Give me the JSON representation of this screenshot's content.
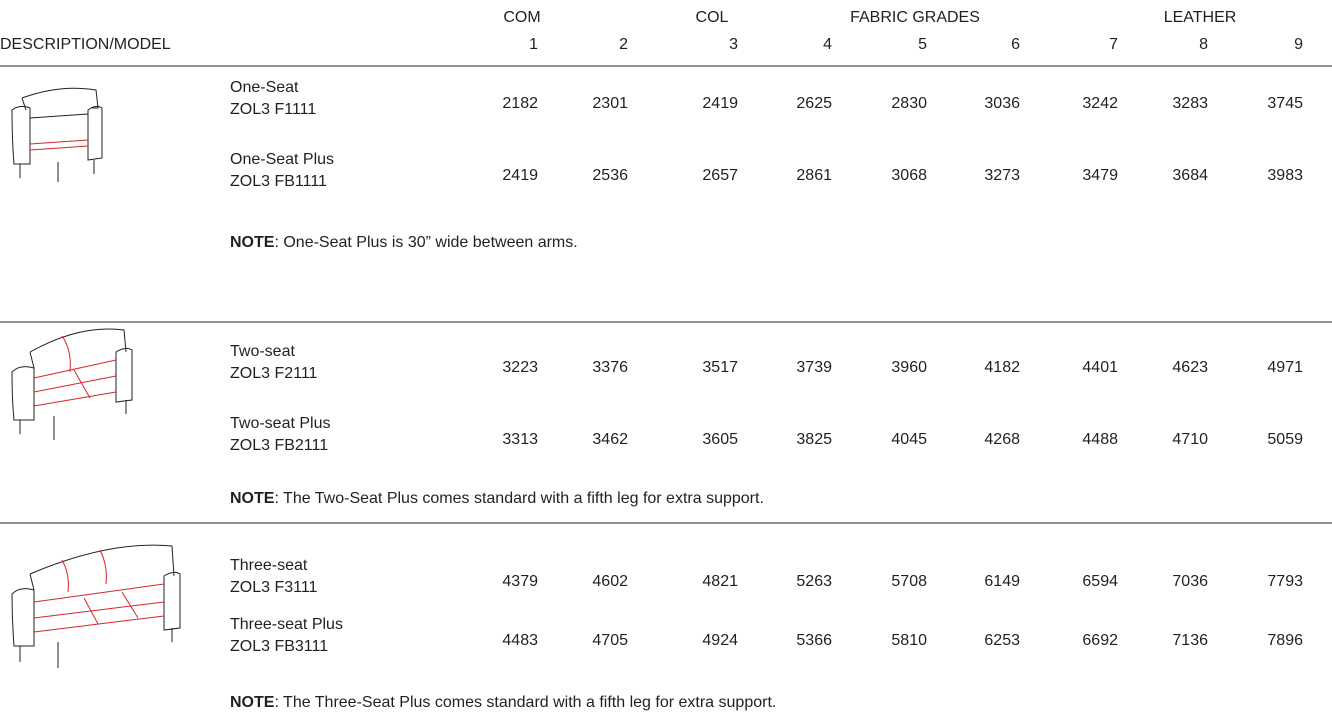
{
  "header": {
    "description": "DESCRIPTION/MODEL",
    "groups": [
      "COM",
      "COL",
      "FABRIC GRADES",
      "LEATHER"
    ],
    "grades": [
      "1",
      "2",
      "3",
      "4",
      "5",
      "6",
      "7",
      "8",
      "9"
    ]
  },
  "sections": [
    {
      "rows": [
        {
          "name": "One-Seat",
          "model": "ZOL3 F1111",
          "prices": [
            "2182",
            "2301",
            "2419",
            "2625",
            "2830",
            "3036",
            "3242",
            "3283",
            "3745"
          ]
        },
        {
          "name": "One-Seat Plus",
          "model": "ZOL3 FB1111",
          "prices": [
            "2419",
            "2536",
            "2657",
            "2861",
            "3068",
            "3273",
            "3479",
            "3684",
            "3983"
          ]
        }
      ],
      "note": {
        "label": "NOTE",
        "text": ": One-Seat Plus is 30” wide between arms."
      }
    },
    {
      "rows": [
        {
          "name": "Two-seat",
          "model": "ZOL3 F2111",
          "prices": [
            "3223",
            "3376",
            "3517",
            "3739",
            "3960",
            "4182",
            "4401",
            "4623",
            "4971"
          ]
        },
        {
          "name": "Two-seat Plus",
          "model": "ZOL3 FB2111",
          "prices": [
            "3313",
            "3462",
            "3605",
            "3825",
            "4045",
            "4268",
            "4488",
            "4710",
            "5059"
          ]
        }
      ],
      "note": {
        "label": "NOTE",
        "text": ": The Two-Seat Plus comes standard with a fifth leg for extra support."
      }
    },
    {
      "rows": [
        {
          "name": "Three-seat",
          "model": "ZOL3 F3111",
          "prices": [
            "4379",
            "4602",
            "4821",
            "5263",
            "5708",
            "6149",
            "6594",
            "7036",
            "7793"
          ]
        },
        {
          "name": "Three-seat Plus",
          "model": "ZOL3 FB3111",
          "prices": [
            "4483",
            "4705",
            "4924",
            "5366",
            "5810",
            "6253",
            "6692",
            "7136",
            "7896"
          ]
        }
      ],
      "note": {
        "label": "NOTE",
        "text": ": The Three-Seat Plus comes standard with a fifth leg for extra support."
      }
    }
  ]
}
